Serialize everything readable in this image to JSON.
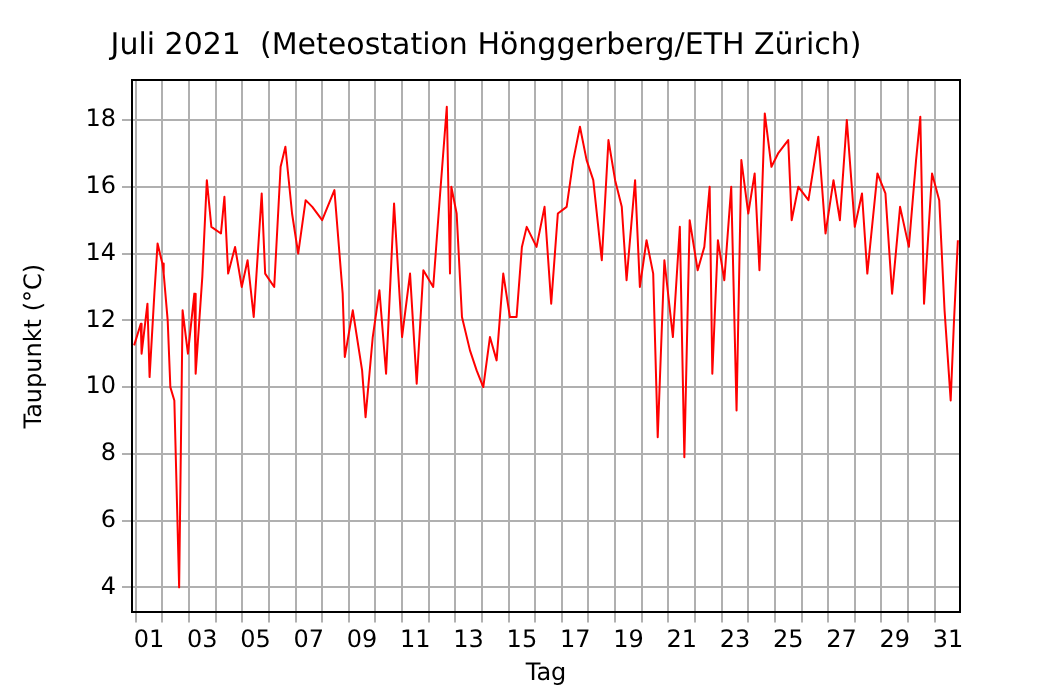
{
  "chart_data": {
    "type": "line",
    "title": "Juli 2021  (Meteostation Hönggerberg/ETH Zürich)",
    "xlabel": "Tag",
    "ylabel": "Taupunkt (°C)",
    "x": [
      0.94,
      1.19,
      1.22,
      1.44,
      1.52,
      1.7,
      1.82,
      2.0,
      2.05,
      2.2,
      2.3,
      2.45,
      2.55,
      2.63,
      2.76,
      2.96,
      3.2,
      3.25,
      3.5,
      3.67,
      3.84,
      4.2,
      4.33,
      4.47,
      4.73,
      4.98,
      5.2,
      5.43,
      5.73,
      5.86,
      6.2,
      6.44,
      6.62,
      6.87,
      7.1,
      7.38,
      7.63,
      8.0,
      8.46,
      8.77,
      8.85,
      9.15,
      9.5,
      9.63,
      9.9,
      10.15,
      10.4,
      10.7,
      11.0,
      11.3,
      11.55,
      11.8,
      12.17,
      12.43,
      12.68,
      12.8,
      12.85,
      13.05,
      13.25,
      13.55,
      13.8,
      14.05,
      14.3,
      14.55,
      14.8,
      15.05,
      15.3,
      15.5,
      15.68,
      16.05,
      16.35,
      16.6,
      16.85,
      17.18,
      17.43,
      17.68,
      17.93,
      18.18,
      18.5,
      18.75,
      19.0,
      19.25,
      19.43,
      19.75,
      19.93,
      20.18,
      20.43,
      20.6,
      20.85,
      21.17,
      21.43,
      21.6,
      21.8,
      22.1,
      22.35,
      22.55,
      22.65,
      22.86,
      23.1,
      23.36,
      23.56,
      23.74,
      24.0,
      24.24,
      24.42,
      24.62,
      24.87,
      25.12,
      25.5,
      25.63,
      25.88,
      26.26,
      26.63,
      26.9,
      27.2,
      27.44,
      27.7,
      28.0,
      28.27,
      28.47,
      28.85,
      29.15,
      29.4,
      29.7,
      30.03,
      30.3,
      30.46,
      30.6,
      30.9,
      31.17,
      31.37,
      31.6,
      31.72,
      31.87
    ],
    "series": [
      {
        "color": "#ff0000",
        "values": [
          11.25,
          11.9,
          11.0,
          12.5,
          10.3,
          12.8,
          14.3,
          13.7,
          13.4,
          12.0,
          10.0,
          9.6,
          6.5,
          4.0,
          12.3,
          11.0,
          12.8,
          10.4,
          13.3,
          16.2,
          14.8,
          14.6,
          15.7,
          13.4,
          14.2,
          13.0,
          13.8,
          12.1,
          15.8,
          13.4,
          13.0,
          16.6,
          17.2,
          15.2,
          14.0,
          15.6,
          15.4,
          15.0,
          15.9,
          12.8,
          10.9,
          12.3,
          10.5,
          9.1,
          11.5,
          12.9,
          10.4,
          15.5,
          11.5,
          13.4,
          10.1,
          13.5,
          13.0,
          15.8,
          18.4,
          13.4,
          16.0,
          15.2,
          12.1,
          11.1,
          10.5,
          10.0,
          11.5,
          10.8,
          13.4,
          12.1,
          12.1,
          14.2,
          14.8,
          14.2,
          15.4,
          12.5,
          15.2,
          15.4,
          16.8,
          17.8,
          16.8,
          16.2,
          13.8,
          17.4,
          16.2,
          15.4,
          13.2,
          16.2,
          13.0,
          14.4,
          13.4,
          8.5,
          13.8,
          11.5,
          14.8,
          7.9,
          15.0,
          13.5,
          14.2,
          16.0,
          10.4,
          14.4,
          13.2,
          16.0,
          9.3,
          16.8,
          15.2,
          16.4,
          13.5,
          18.2,
          16.6,
          17.0,
          17.4,
          15.0,
          16.0,
          15.6,
          17.5,
          14.6,
          16.2,
          15.0,
          18.0,
          14.8,
          15.8,
          13.4,
          16.4,
          15.8,
          12.8,
          15.4,
          14.2,
          16.8,
          18.1,
          12.5,
          16.4,
          15.6,
          12.3,
          9.6,
          11.9,
          14.4
        ]
      }
    ],
    "xlim": [
      0.86,
      31.95
    ],
    "xticks": [
      {
        "value": 1,
        "label": null
      },
      {
        "value": 1.5,
        "label": "01"
      },
      {
        "value": 2,
        "label": null
      },
      {
        "value": 3,
        "label": null
      },
      {
        "value": 3.5,
        "label": "03"
      },
      {
        "value": 4,
        "label": null
      },
      {
        "value": 5,
        "label": null
      },
      {
        "value": 5.5,
        "label": "05"
      },
      {
        "value": 6,
        "label": null
      },
      {
        "value": 7,
        "label": null
      },
      {
        "value": 7.5,
        "label": "07"
      },
      {
        "value": 8,
        "label": null
      },
      {
        "value": 9,
        "label": null
      },
      {
        "value": 9.5,
        "label": "09"
      },
      {
        "value": 10,
        "label": null
      },
      {
        "value": 11,
        "label": null
      },
      {
        "value": 11.5,
        "label": "11"
      },
      {
        "value": 12,
        "label": null
      },
      {
        "value": 13,
        "label": null
      },
      {
        "value": 13.5,
        "label": "13"
      },
      {
        "value": 14,
        "label": null
      },
      {
        "value": 15,
        "label": null
      },
      {
        "value": 15.5,
        "label": "15"
      },
      {
        "value": 16,
        "label": null
      },
      {
        "value": 17,
        "label": null
      },
      {
        "value": 17.5,
        "label": "17"
      },
      {
        "value": 18,
        "label": null
      },
      {
        "value": 19,
        "label": null
      },
      {
        "value": 19.5,
        "label": "19"
      },
      {
        "value": 20,
        "label": null
      },
      {
        "value": 21,
        "label": null
      },
      {
        "value": 21.5,
        "label": "21"
      },
      {
        "value": 22,
        "label": null
      },
      {
        "value": 23,
        "label": null
      },
      {
        "value": 23.5,
        "label": "23"
      },
      {
        "value": 24,
        "label": null
      },
      {
        "value": 25,
        "label": null
      },
      {
        "value": 25.5,
        "label": "25"
      },
      {
        "value": 26,
        "label": null
      },
      {
        "value": 27,
        "label": null
      },
      {
        "value": 27.5,
        "label": "27"
      },
      {
        "value": 28,
        "label": null
      },
      {
        "value": 29,
        "label": null
      },
      {
        "value": 29.5,
        "label": "29"
      },
      {
        "value": 30,
        "label": null
      },
      {
        "value": 31,
        "label": null
      },
      {
        "value": 31.5,
        "label": "31"
      }
    ],
    "ylim": [
      3.25,
      19.2
    ],
    "yticks": [
      4,
      6,
      8,
      10,
      12,
      14,
      16,
      18
    ],
    "grid": true,
    "marker": "none",
    "line_style": "solid",
    "legend": false
  }
}
